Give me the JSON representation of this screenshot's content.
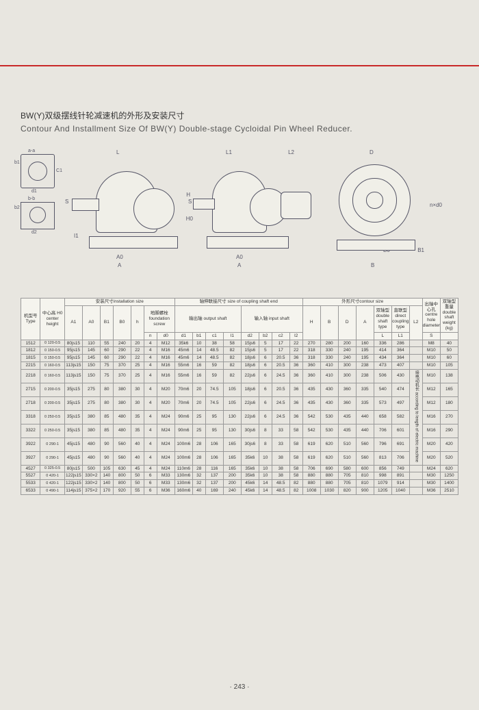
{
  "title_cn": "BW(Y)双级摆线针轮减速机的外形及安装尺寸",
  "title_en": "Contour And Installment Size Of BW(Y) Double-stage Cycloidal Pin Wheel Reducer.",
  "page_number": "· 243 ·",
  "diagram_labels": {
    "aa": "a-a",
    "bb": "b-b",
    "b1": "b1",
    "d1": "d1",
    "c1": "C1",
    "b2": "b2",
    "d2": "d2",
    "L": "L",
    "L1": "L1",
    "L2": "L2",
    "D": "D",
    "S": "S",
    "H": "H",
    "H0": "H0",
    "I1": "I1",
    "A0": "A0",
    "A": "A",
    "B0": "B0",
    "B1d": "B1",
    "B": "B",
    "nxd0": "n×d0"
  },
  "header": {
    "type": "机型号 Type",
    "h0": "中心高 H0 center height",
    "install": "安装尺寸installation size",
    "coupling": "轴伸联接尺寸 size of coupling shaft end",
    "contour": "外形尺寸contour size",
    "foundation": "地脚螺栓 foundation screw",
    "output": "输出轴 output shaft",
    "input": "输入轴 input shaft",
    "double_shaft": "双轴型 double shaft type",
    "direct": "直联型 direct coupling type",
    "centre": "出轴中心孔 centre hole diameter",
    "weight": "双轴型重量 double shaft weight (kg)",
    "note": "接电动机长 according to length of electric machine",
    "cols": [
      "A1",
      "A0",
      "B1",
      "B0",
      "h",
      "n",
      "d0",
      "d1",
      "b1",
      "c1",
      "I1",
      "d2",
      "b2",
      "c2",
      "I2",
      "H",
      "B",
      "D",
      "A",
      "L",
      "L1",
      "L2",
      "S"
    ]
  },
  "rows": [
    [
      "1512",
      "0 120-0.5",
      "80js15",
      "110",
      "55",
      "240",
      "20",
      "4",
      "M12",
      "35k6",
      "10",
      "38",
      "58",
      "15js6",
      "5",
      "17",
      "22",
      "270",
      "280",
      "200",
      "160",
      "336",
      "286",
      "",
      "M8",
      "40"
    ],
    [
      "1812",
      "0 150-0.5",
      "95js15",
      "145",
      "60",
      "290",
      "22",
      "4",
      "M16",
      "45m6",
      "14",
      "48.5",
      "82",
      "15js6",
      "5",
      "17",
      "22",
      "318",
      "330",
      "240",
      "195",
      "414",
      "364",
      "",
      "M10",
      "50"
    ],
    [
      "1815",
      "0 150-0.5",
      "95js15",
      "145",
      "60",
      "290",
      "22",
      "4",
      "M16",
      "45m6",
      "14",
      "48.5",
      "82",
      "18js6",
      "6",
      "20.5",
      "36",
      "318",
      "330",
      "240",
      "195",
      "434",
      "364",
      "",
      "M10",
      "60"
    ],
    [
      "2215",
      "0 160-0.5",
      "113js15",
      "150",
      "75",
      "370",
      "25",
      "4",
      "M16",
      "55m6",
      "16",
      "59",
      "82",
      "18js6",
      "6",
      "20.5",
      "36",
      "360",
      "410",
      "300",
      "238",
      "473",
      "407",
      "",
      "M10",
      "105"
    ],
    [
      "2218",
      "0 160-0.5",
      "113js15",
      "150",
      "75",
      "370",
      "25",
      "4",
      "M16",
      "55m6",
      "16",
      "59",
      "82",
      "22js6",
      "6",
      "24.5",
      "36",
      "360",
      "410",
      "300",
      "238",
      "506",
      "430",
      "",
      "M10",
      "138"
    ],
    [
      "2715",
      "0 200-0.5",
      "35js15",
      "275",
      "80",
      "380",
      "30",
      "4",
      "M20",
      "70m6",
      "20",
      "74.5",
      "105",
      "18js6",
      "6",
      "20.5",
      "36",
      "435",
      "430",
      "360",
      "335",
      "540",
      "474",
      "",
      "M12",
      "165"
    ],
    [
      "2718",
      "0 200-0.5",
      "35js15",
      "275",
      "80",
      "380",
      "30",
      "4",
      "M20",
      "70m6",
      "20",
      "74.5",
      "105",
      "22js6",
      "6",
      "24.5",
      "36",
      "435",
      "430",
      "360",
      "335",
      "573",
      "497",
      "",
      "M12",
      "180"
    ],
    [
      "3318",
      "0 250-0.5",
      "35js15",
      "380",
      "85",
      "480",
      "35",
      "4",
      "M24",
      "90m6",
      "25",
      "95",
      "130",
      "22js6",
      "6",
      "24.5",
      "36",
      "542",
      "530",
      "435",
      "440",
      "658",
      "582",
      "",
      "M16",
      "270"
    ],
    [
      "3322",
      "0 250-0.5",
      "35js15",
      "380",
      "85",
      "480",
      "35",
      "4",
      "M24",
      "90m6",
      "25",
      "95",
      "130",
      "30js6",
      "8",
      "33",
      "58",
      "542",
      "530",
      "435",
      "440",
      "706",
      "601",
      "",
      "M16",
      "290"
    ],
    [
      "3922",
      "0 290-1",
      "45js15",
      "480",
      "90",
      "560",
      "40",
      "4",
      "M24",
      "100m6",
      "28",
      "106",
      "165",
      "30js6",
      "8",
      "33",
      "58",
      "619",
      "620",
      "510",
      "560",
      "796",
      "691",
      "",
      "M20",
      "420"
    ],
    [
      "3927",
      "0 290-1",
      "45js15",
      "480",
      "90",
      "560",
      "40",
      "4",
      "M24",
      "100m6",
      "28",
      "106",
      "165",
      "35k6",
      "10",
      "38",
      "58",
      "619",
      "620",
      "510",
      "560",
      "813",
      "706",
      "",
      "M20",
      "520"
    ],
    [
      "4527",
      "0 325-0.5",
      "80js15",
      "500",
      "105",
      "630",
      "45",
      "4",
      "M24",
      "110m6",
      "28",
      "116",
      "165",
      "35k6",
      "10",
      "38",
      "58",
      "706",
      "690",
      "580",
      "600",
      "856",
      "749",
      "",
      "M24",
      "620"
    ],
    [
      "5527",
      "0 420-1",
      "122js15",
      "330×2",
      "140",
      "800",
      "50",
      "6",
      "M33",
      "130m6",
      "32",
      "137",
      "200",
      "35k6",
      "10",
      "38",
      "58",
      "880",
      "880",
      "705",
      "810",
      "998",
      "891",
      "",
      "M30",
      "1250"
    ],
    [
      "5533",
      "0 420-1",
      "122js15",
      "330×2",
      "140",
      "800",
      "50",
      "6",
      "M33",
      "130m6",
      "32",
      "137",
      "200",
      "45k6",
      "14",
      "48.5",
      "82",
      "880",
      "880",
      "705",
      "810",
      "1079",
      "914",
      "",
      "M30",
      "1400"
    ],
    [
      "6533",
      "0 490-1",
      "114js15",
      "375×2",
      "170",
      "920",
      "55",
      "6",
      "M36",
      "160m6",
      "40",
      "169",
      "240",
      "45k6",
      "14",
      "48.5",
      "82",
      "1008",
      "1030",
      "820",
      "900",
      "1205",
      "1040",
      "",
      "M36",
      "2510"
    ]
  ]
}
